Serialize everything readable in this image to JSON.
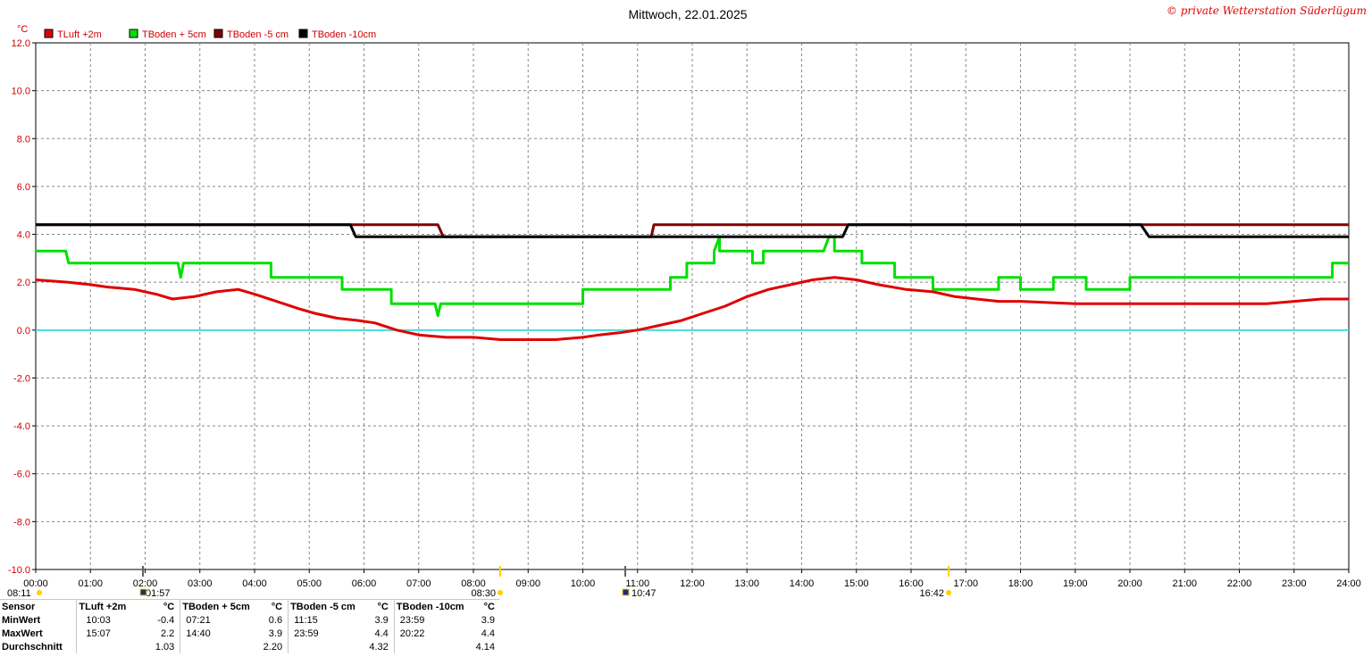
{
  "title": "Mittwoch, 22.01.2025",
  "copyright": "© private Wetterstation Süderlügum",
  "chart_data": {
    "type": "line",
    "y_unit": "°C",
    "ylim": [
      -10,
      12
    ],
    "y_ticks": [
      "12.0",
      "10.0",
      "8.0",
      "6.0",
      "4.0",
      "2.0",
      "0.0",
      "-2.0",
      "-4.0",
      "-6.0",
      "-8.0",
      "-10.0"
    ],
    "xlim": [
      0,
      24
    ],
    "x_ticks": [
      "00:00",
      "01:00",
      "02:00",
      "03:00",
      "04:00",
      "05:00",
      "06:00",
      "07:00",
      "08:00",
      "09:00",
      "10:00",
      "11:00",
      "12:00",
      "13:00",
      "14:00",
      "15:00",
      "16:00",
      "17:00",
      "18:00",
      "19:00",
      "20:00",
      "21:00",
      "22:00",
      "23:00",
      "24:00"
    ],
    "grid": true,
    "legend_position": "top-left",
    "zero_line_color": "#40e0e0",
    "series": [
      {
        "name": "TLuft +2m",
        "color": "#e00000",
        "swatch": "#e00000",
        "width": 3,
        "x": [
          0,
          0.6,
          1.0,
          1.3,
          1.8,
          2.2,
          2.5,
          2.9,
          3.3,
          3.7,
          4.0,
          4.4,
          4.8,
          5.1,
          5.5,
          5.9,
          6.2,
          6.6,
          7.0,
          7.5,
          8.0,
          8.5,
          9.0,
          9.5,
          10.0,
          10.3,
          10.7,
          11.0,
          11.4,
          11.8,
          12.2,
          12.6,
          13.0,
          13.4,
          13.8,
          14.2,
          14.6,
          15.0,
          15.4,
          15.9,
          16.4,
          16.8,
          17.2,
          17.6,
          18.0,
          19.0,
          20.0,
          20.5,
          21.0,
          21.5,
          22.0,
          22.5,
          23.0,
          23.5,
          24.0
        ],
        "y": [
          2.1,
          2.0,
          1.9,
          1.8,
          1.7,
          1.5,
          1.3,
          1.4,
          1.6,
          1.7,
          1.5,
          1.2,
          0.9,
          0.7,
          0.5,
          0.4,
          0.3,
          0.0,
          -0.2,
          -0.3,
          -0.3,
          -0.4,
          -0.4,
          -0.4,
          -0.3,
          -0.2,
          -0.1,
          0.0,
          0.2,
          0.4,
          0.7,
          1.0,
          1.4,
          1.7,
          1.9,
          2.1,
          2.2,
          2.1,
          1.9,
          1.7,
          1.6,
          1.4,
          1.3,
          1.2,
          1.2,
          1.1,
          1.1,
          1.1,
          1.1,
          1.1,
          1.1,
          1.1,
          1.2,
          1.3,
          1.3
        ]
      },
      {
        "name": "TBoden + 5cm",
        "color": "#00e000",
        "swatch": "#00e000",
        "width": 3,
        "x": [
          0,
          0.55,
          0.6,
          2.6,
          2.65,
          2.7,
          4.3,
          4.3,
          4.55,
          4.6,
          5.6,
          5.6,
          6.5,
          6.5,
          7.3,
          7.35,
          7.4,
          10.0,
          10.0,
          11.6,
          11.6,
          11.9,
          11.9,
          12.4,
          12.4,
          12.5,
          12.5,
          13.1,
          13.1,
          13.3,
          13.3,
          14.4,
          14.5,
          14.6,
          14.6,
          15.1,
          15.1,
          15.7,
          15.7,
          16.4,
          16.4,
          17.6,
          17.6,
          18.0,
          18.0,
          18.6,
          18.6,
          19.2,
          19.2,
          20.0,
          20.0,
          23.7,
          23.7,
          24.0
        ],
        "y": [
          3.3,
          3.3,
          2.8,
          2.8,
          2.2,
          2.8,
          2.8,
          2.2,
          2.2,
          2.2,
          2.2,
          1.7,
          1.7,
          1.1,
          1.1,
          0.6,
          1.1,
          1.1,
          1.7,
          1.7,
          2.2,
          2.2,
          2.8,
          2.8,
          3.3,
          3.9,
          3.3,
          3.3,
          2.8,
          2.8,
          3.3,
          3.3,
          3.9,
          3.9,
          3.3,
          3.3,
          2.8,
          2.8,
          2.2,
          2.2,
          1.7,
          1.7,
          2.2,
          2.2,
          1.7,
          1.7,
          2.2,
          2.2,
          1.7,
          1.7,
          2.2,
          2.2,
          2.8,
          2.8
        ]
      },
      {
        "name": "TBoden -5 cm",
        "color": "#800000",
        "swatch": "#800000",
        "width": 3,
        "x": [
          0,
          5.75,
          5.8,
          7.35,
          7.45,
          11.25,
          11.3,
          15.85,
          16.0,
          20.25,
          20.3,
          24.0
        ],
        "y": [
          4.4,
          4.4,
          4.4,
          4.4,
          3.9,
          3.9,
          4.4,
          4.4,
          4.4,
          4.4,
          4.4,
          4.4
        ]
      },
      {
        "name": "TBoden -10cm",
        "color": "#000000",
        "swatch": "#000000",
        "width": 3,
        "x": [
          0,
          5.75,
          5.85,
          14.75,
          14.85,
          20.2,
          20.35,
          24.0
        ],
        "y": [
          4.4,
          4.4,
          3.9,
          3.9,
          4.4,
          4.4,
          3.9,
          3.9
        ]
      }
    ]
  },
  "markers": {
    "sun_labels": [
      "08:11",
      "01:57",
      "08:30",
      "10:47",
      "16:42"
    ]
  },
  "stats": {
    "header": [
      "Sensor",
      "TLuft +2m",
      "°C",
      "TBoden + 5cm",
      "°C",
      "TBoden -5 cm",
      "°C",
      "TBoden -10cm",
      "°C"
    ],
    "rows": [
      [
        "MinWert",
        "10:03",
        "-0.4",
        "07:21",
        "0.6",
        "11:15",
        "3.9",
        "23:59",
        "3.9"
      ],
      [
        "MaxWert",
        "15:07",
        "2.2",
        "14:40",
        "3.9",
        "23:59",
        "4.4",
        "20:22",
        "4.4"
      ],
      [
        "Durchschnitt",
        "",
        "1.03",
        "",
        "2.20",
        "",
        "4.32",
        "",
        "4.14"
      ]
    ]
  }
}
